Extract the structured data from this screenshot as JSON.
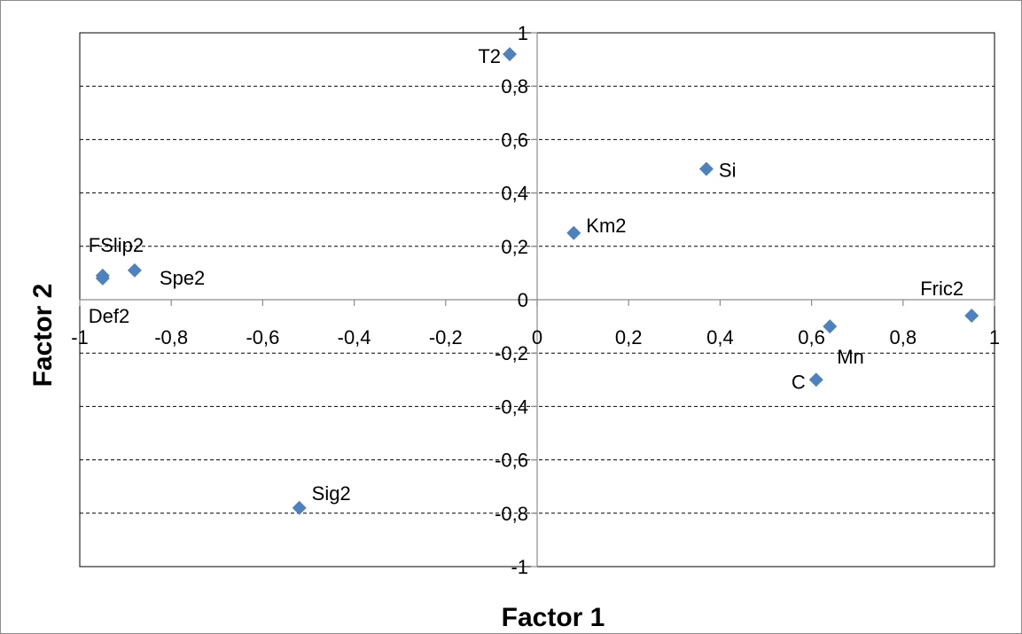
{
  "chart_data": {
    "type": "scatter",
    "title": "",
    "xlabel": "Factor 1",
    "ylabel": "Factor 2",
    "xlim": [
      -1,
      1
    ],
    "ylim": [
      -1,
      1
    ],
    "x_ticks": [
      "-1",
      "-0,8",
      "-0,6",
      "-0,4",
      "-0,2",
      "0",
      "0,2",
      "0,4",
      "0,6",
      "0,8",
      "1"
    ],
    "y_ticks": [
      "-1",
      "-0,8",
      "-0,6",
      "-0,4",
      "-0,2",
      "0",
      "0,2",
      "0,4",
      "0,6",
      "0,8",
      "1"
    ],
    "grid": "horizontal dashed",
    "marker": "diamond",
    "marker_color": "#4F81BD",
    "points": [
      {
        "label": "T2",
        "x": -0.06,
        "y": 0.92
      },
      {
        "label": "Si",
        "x": 0.37,
        "y": 0.49
      },
      {
        "label": "Km2",
        "x": 0.08,
        "y": 0.25
      },
      {
        "label": "FSlip2",
        "x": -0.95,
        "y": 0.09
      },
      {
        "label": "Def2",
        "x": -0.95,
        "y": 0.08
      },
      {
        "label": "Spe2",
        "x": -0.88,
        "y": 0.11
      },
      {
        "label": "Fric2",
        "x": 0.95,
        "y": -0.06
      },
      {
        "label": "Mn",
        "x": 0.64,
        "y": -0.1
      },
      {
        "label": "C",
        "x": 0.61,
        "y": -0.3
      },
      {
        "label": "Sig2",
        "x": -0.52,
        "y": -0.78
      }
    ]
  }
}
